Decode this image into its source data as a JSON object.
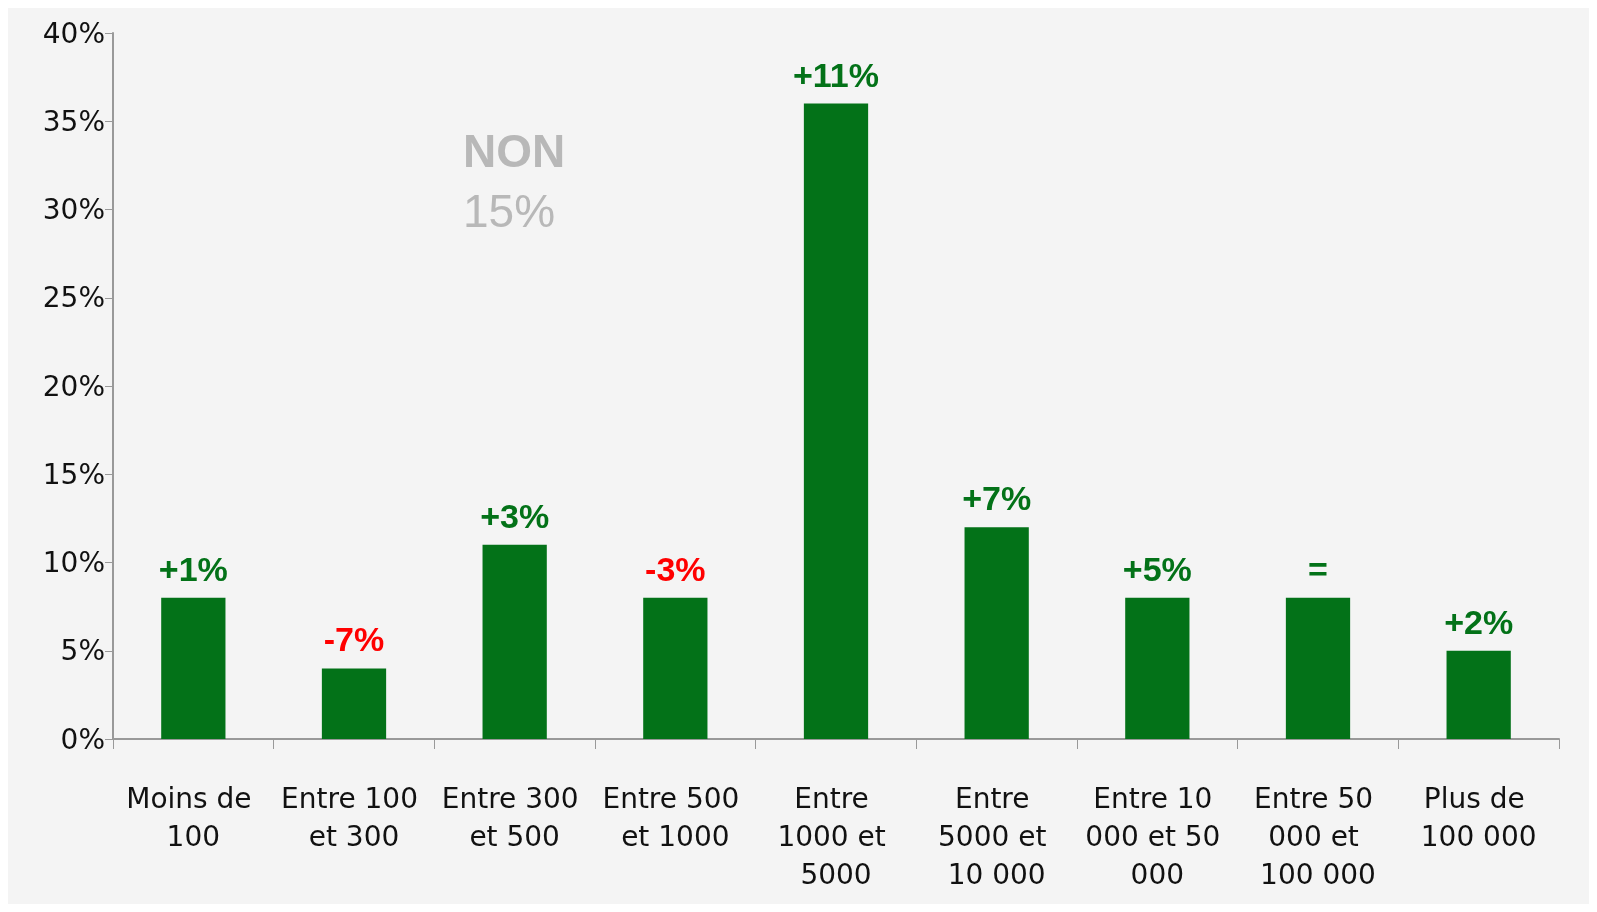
{
  "chart_data": {
    "type": "bar",
    "categories": [
      "Moins de 100",
      "Entre 100 et 300",
      "Entre 300 et 500",
      "Entre 500 et 1000",
      "Entre 1000 et 5000",
      "Entre 5000 et 10 000",
      "Entre 10 000 et 50 000",
      "Entre 50 000 et 100 000",
      "Plus de 100 000"
    ],
    "values": [
      8,
      4,
      11,
      8,
      36,
      12,
      8,
      8,
      5
    ],
    "color": "#037218",
    "ylim": [
      0,
      40
    ],
    "yticks": [
      {
        "value": 0,
        "label": "0%"
      },
      {
        "value": 5,
        "label": "5%"
      },
      {
        "value": 10,
        "label": "10%"
      },
      {
        "value": 15,
        "label": "15%"
      },
      {
        "value": 20,
        "label": "20%"
      },
      {
        "value": 25,
        "label": "25%"
      },
      {
        "value": 30,
        "label": "30%"
      },
      {
        "value": 35,
        "label": "35%"
      },
      {
        "value": 40,
        "label": "40%"
      }
    ],
    "grid": false,
    "annotations": [
      "NON",
      "15%",
      {
        "text": "+1%",
        "x": "Moins de 100",
        "y": 8
      },
      {
        "text": "-7%",
        "x": "Entre 100 et 300",
        "y": 4
      },
      {
        "text": "+3%",
        "x": "Entre 300 et 500",
        "y": 11
      },
      {
        "text": "-3%",
        "x": "Entre 500 et 1000",
        "y": 8
      },
      {
        "text": "+11%",
        "x": "Entre 1000 et 5000",
        "y": 36
      },
      {
        "text": "+7%",
        "x": "Entre 5000 et 10 000",
        "y": 12
      },
      {
        "text": "+5%",
        "x": "Entre 10 000 et 50 000",
        "y": 8
      },
      {
        "text": "=",
        "x": "Entre 50 000 et 100 000",
        "y": 8
      },
      {
        "text": "+2%",
        "x": "Plus de 100 000",
        "y": 5
      }
    ]
  }
}
